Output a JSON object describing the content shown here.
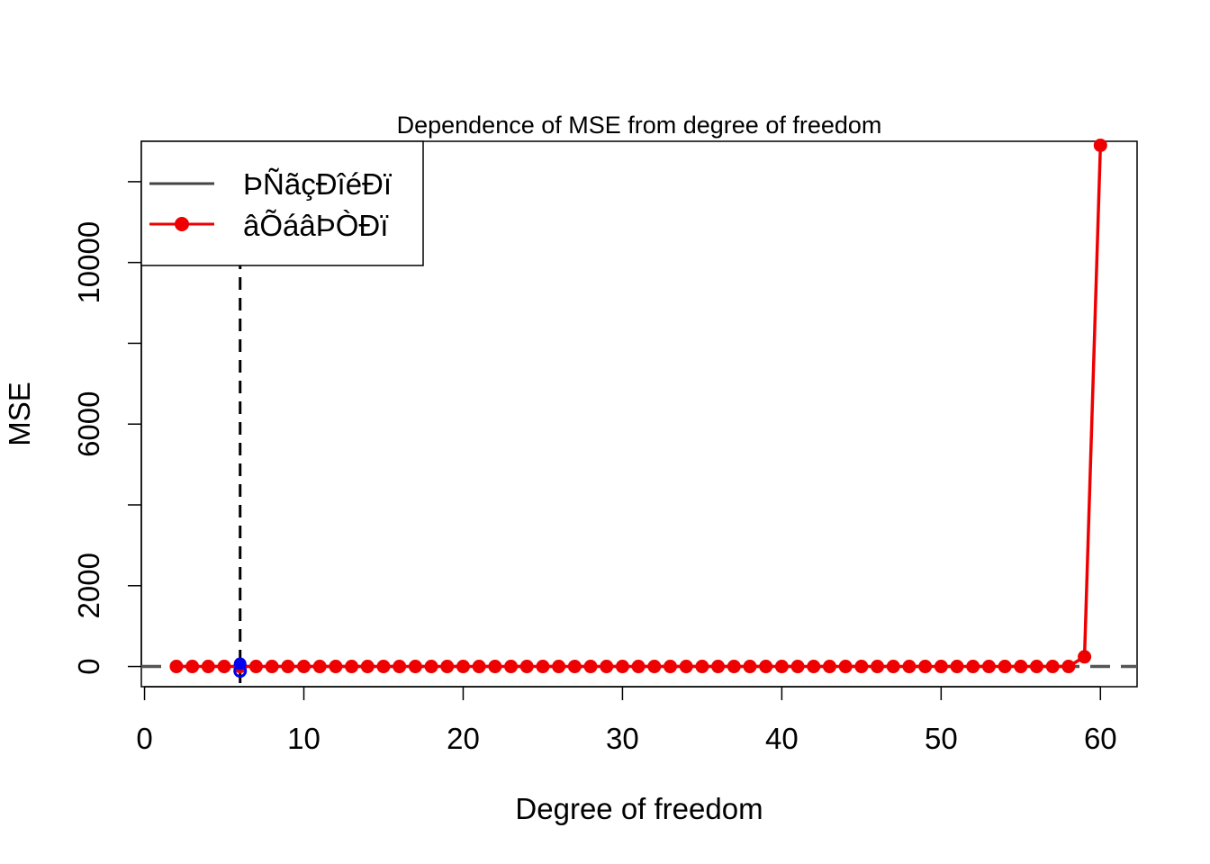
{
  "chart_data": {
    "type": "line",
    "title": "Dependence of MSE from degree of freedom",
    "xlabel": "Degree of freedom",
    "ylabel": "MSE",
    "xlim": [
      -0.2,
      62.3
    ],
    "ylim": [
      -500,
      13000
    ],
    "xticks": [
      0,
      10,
      20,
      30,
      40,
      50,
      60
    ],
    "yticks": [
      0,
      2000,
      4000,
      6000,
      8000,
      10000,
      12000
    ],
    "ytick_labels": [
      "0",
      "2000",
      "",
      "6000",
      "",
      "10000",
      ""
    ],
    "grid": false,
    "legend_position": "top-left",
    "series": [
      {
        "name": "ÞÑãçÐîéÐï",
        "color": "#555555",
        "style": "dashed horizontal line",
        "x": [
          -0.2,
          62.3
        ],
        "y": [
          0,
          0
        ]
      },
      {
        "name": "âÕáâÞÒÐï",
        "color": "#ee0000",
        "style": "line with points",
        "x": [
          2,
          3,
          4,
          5,
          6,
          7,
          8,
          9,
          10,
          11,
          12,
          13,
          14,
          15,
          16,
          17,
          18,
          19,
          20,
          21,
          22,
          23,
          24,
          25,
          26,
          27,
          28,
          29,
          30,
          31,
          32,
          33,
          34,
          35,
          36,
          37,
          38,
          39,
          40,
          41,
          42,
          43,
          44,
          45,
          46,
          47,
          48,
          49,
          50,
          51,
          52,
          53,
          54,
          55,
          56,
          57,
          58,
          59,
          60
        ],
        "y": [
          0,
          0,
          0,
          0,
          0,
          0,
          0,
          0,
          0,
          0,
          0,
          0,
          0,
          0,
          0,
          0,
          0,
          0,
          0,
          0,
          0,
          0,
          0,
          0,
          0,
          0,
          0,
          0,
          0,
          0,
          0,
          0,
          0,
          0,
          0,
          0,
          0,
          0,
          0,
          0,
          0,
          0,
          0,
          0,
          0,
          0,
          0,
          0,
          0,
          0,
          0,
          0,
          0,
          0,
          0,
          0,
          0,
          240,
          12900
        ]
      }
    ],
    "optimum": {
      "x": 6,
      "y": 0,
      "color": "#0000ee"
    },
    "vline": {
      "x": 6,
      "color": "#000000",
      "style": "dashed"
    }
  }
}
